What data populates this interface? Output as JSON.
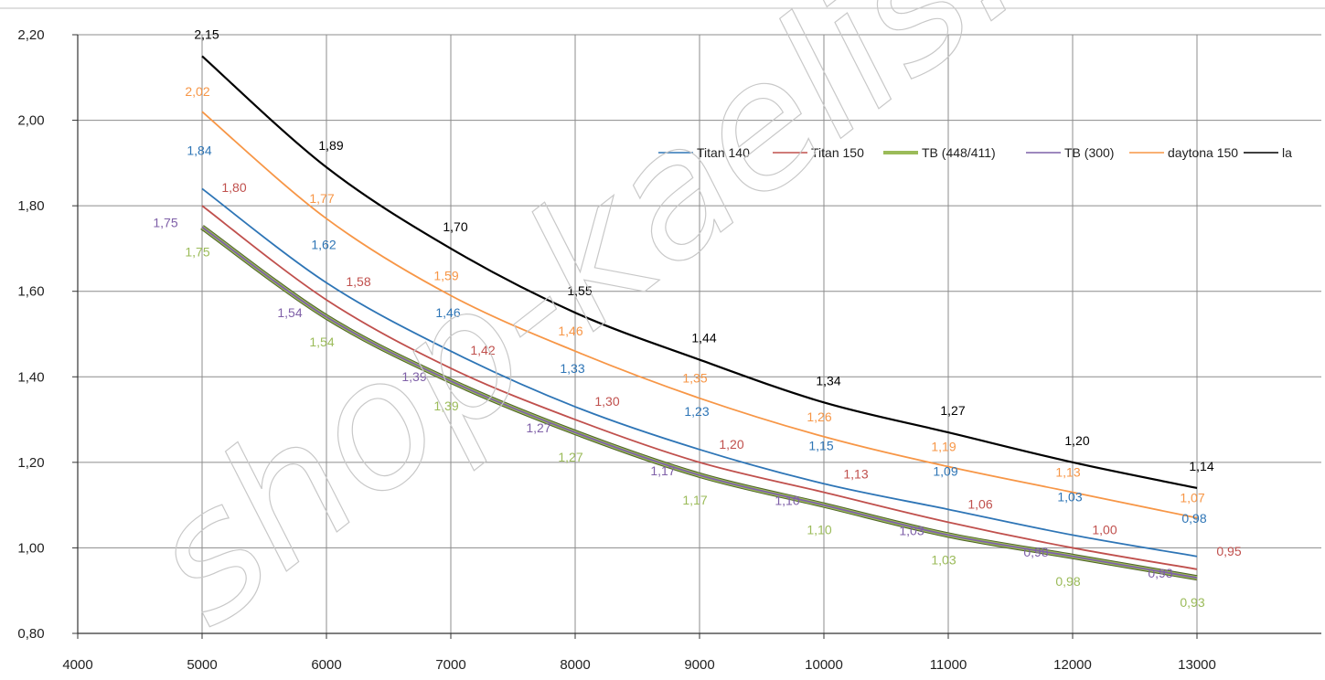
{
  "chart_data": {
    "type": "line",
    "title": "",
    "xlabel": "",
    "ylabel": "",
    "xlim": [
      4000,
      14000
    ],
    "ylim": [
      0.8,
      2.2
    ],
    "x_ticks": [
      "4000",
      "5000",
      "6000",
      "7000",
      "8000",
      "9000",
      "10000",
      "11000",
      "12000",
      "13000"
    ],
    "y_ticks": [
      "0,80",
      "1,00",
      "1,20",
      "1,40",
      "1,60",
      "1,80",
      "2,00",
      "2,20"
    ],
    "grid": "vertical and horizontal major",
    "legend_position": "top-right",
    "x": [
      5000,
      6000,
      7000,
      8000,
      9000,
      10000,
      11000,
      12000,
      13000
    ],
    "series": [
      {
        "name": "Titan 140",
        "color": "#2e75b6",
        "values": [
          1.84,
          1.62,
          1.46,
          1.33,
          1.23,
          1.15,
          1.09,
          1.03,
          0.98
        ],
        "labels": [
          "1,84",
          "1,62",
          "1,46",
          "1,33",
          "1,23",
          "1,15",
          "1,09",
          "1,03",
          "0,98"
        ]
      },
      {
        "name": "Titan 150",
        "color": "#c0504d",
        "values": [
          1.8,
          1.58,
          1.42,
          1.3,
          1.2,
          1.13,
          1.06,
          1.0,
          0.95
        ],
        "labels": [
          "1,80",
          "1,58",
          "1,42",
          "1,30",
          "1,20",
          "1,13",
          "1,06",
          "1,00",
          "0,95"
        ]
      },
      {
        "name": "TB (448/411)",
        "color": "#9bbb59",
        "values": [
          1.75,
          1.54,
          1.39,
          1.27,
          1.17,
          1.1,
          1.03,
          0.98,
          0.93
        ],
        "labels": [
          "1,75",
          "1,54",
          "1,39",
          "1,27",
          "1,17",
          "1,10",
          "1,03",
          "0,98",
          "0,93"
        ]
      },
      {
        "name": "TB (300)",
        "color": "#7f60a8",
        "values": [
          1.75,
          1.54,
          1.39,
          1.27,
          1.17,
          1.1,
          1.03,
          0.98,
          0.93
        ],
        "labels": [
          "1,75",
          "1,54",
          "1,39",
          "1,27",
          "1,17",
          "1,10",
          "1,03",
          "0,98",
          "0,93"
        ]
      },
      {
        "name": "daytona 150",
        "color": "#f79646",
        "values": [
          2.02,
          1.77,
          1.59,
          1.46,
          1.35,
          1.26,
          1.19,
          1.13,
          1.07
        ],
        "labels": [
          "2,02",
          "1,77",
          "1,59",
          "1,46",
          "1,35",
          "1,26",
          "1,19",
          "1,13",
          "1,07"
        ]
      },
      {
        "name": "la",
        "color": "#000000",
        "values": [
          2.15,
          1.89,
          1.7,
          1.55,
          1.44,
          1.34,
          1.27,
          1.2,
          1.14
        ],
        "labels": [
          "2,15",
          "1,89",
          "1,70",
          "1,55",
          "1,44",
          "1,34",
          "1,27",
          "1,20",
          "1,14"
        ]
      }
    ]
  },
  "watermark": "shop-kaelis.r"
}
